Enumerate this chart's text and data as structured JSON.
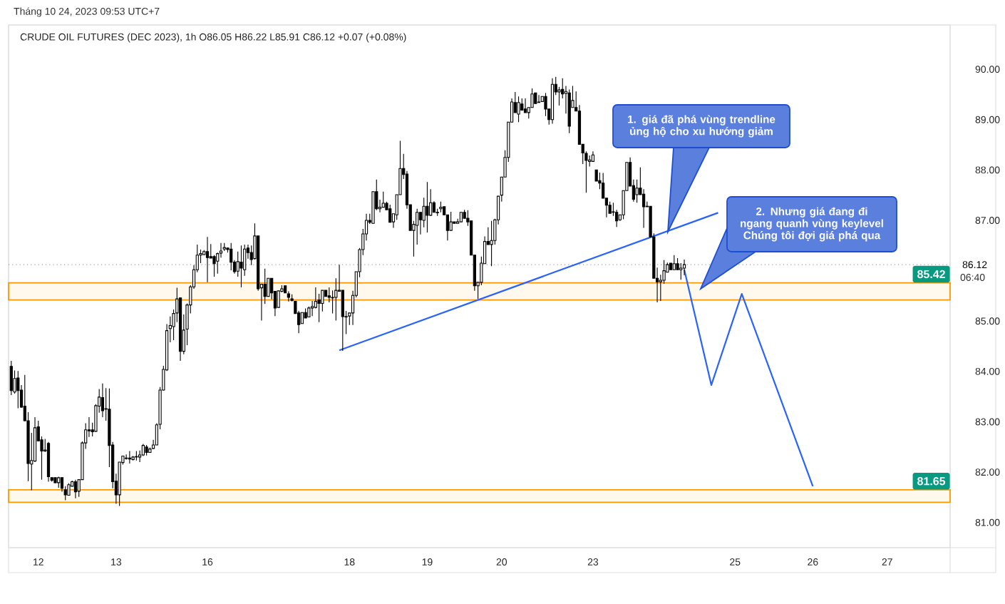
{
  "chart_data": {
    "type": "candlestick",
    "title": "CRUDE OIL FUTURES (DEC 2023), 1h  O86.05  H86.22  L85.91  C86.12  +0.07 (+0.08%)",
    "subtitle": "Tháng 10 24, 2023 09:53 UTC+7",
    "annotations": [
      "06:40",
      "1. giá đã phá vùng trendline ủng hộ cho xu hướng giảm",
      "2. Nhưng giá đang đi ngang quanh vùng keylevel Chúng tôi đợi giá phá qua"
    ],
    "categories": [
      null,
      null,
      null,
      null,
      null,
      null,
      null,
      null,
      "12",
      null,
      null,
      null,
      null,
      null,
      null,
      null,
      null,
      null,
      null,
      null,
      null,
      null,
      null,
      null,
      null,
      null,
      null,
      null,
      null,
      null,
      null,
      "13",
      null,
      null,
      null,
      null,
      null,
      null,
      null,
      null,
      null,
      null,
      null,
      null,
      null,
      null,
      null,
      null,
      null,
      null,
      null,
      null,
      null,
      null,
      null,
      null,
      null,
      null,
      "16",
      null,
      null,
      null,
      null,
      null,
      null,
      null,
      null,
      null,
      null,
      null,
      null,
      null,
      null,
      null,
      null,
      null,
      null,
      null,
      null,
      null,
      null,
      null,
      null,
      null,
      null,
      null,
      null,
      null,
      null,
      null,
      null,
      null,
      null,
      null,
      null,
      null,
      null,
      null,
      null,
      null,
      "18",
      null,
      null,
      null,
      null,
      null,
      null,
      null,
      null,
      null,
      null,
      null,
      null,
      null,
      null,
      null,
      null,
      null,
      null,
      null,
      null,
      null,
      null,
      "19",
      null,
      null,
      null,
      null,
      null,
      null,
      null,
      null,
      null,
      null,
      null,
      null,
      null,
      null,
      null,
      null,
      null,
      null,
      null,
      null,
      null,
      "20",
      null,
      null,
      null,
      null,
      null,
      null,
      null,
      null,
      null,
      null,
      null,
      null,
      null,
      null,
      null,
      null,
      null,
      null,
      null,
      null,
      null,
      null,
      null,
      null,
      null,
      null,
      "23",
      null,
      null,
      null,
      null,
      null,
      null,
      null,
      null,
      null,
      null,
      null,
      null,
      null,
      null,
      null,
      null,
      null,
      null,
      null,
      null,
      null,
      null,
      null,
      null,
      null,
      null,
      null,
      null,
      null,
      null,
      null,
      null,
      null,
      null,
      null,
      null,
      null,
      null,
      null,
      null,
      null,
      "25",
      null,
      null,
      null,
      null,
      null,
      null,
      null,
      null,
      null,
      null,
      null,
      null,
      null,
      null,
      null,
      null,
      null,
      null,
      null,
      null,
      null,
      null,
      "26",
      null,
      null,
      null,
      null,
      null,
      null,
      null,
      null,
      null,
      null,
      null,
      null,
      null,
      null,
      null,
      null,
      null,
      null,
      null,
      null,
      null,
      "27",
      null,
      null,
      null,
      null,
      null,
      null,
      null,
      null,
      null,
      null,
      null,
      null,
      null,
      null,
      null,
      null,
      null,
      null
    ],
    "ohlc": [
      [
        84.1,
        84.21,
        83.53,
        83.62
      ],
      [
        83.59,
        84.02,
        83.56,
        83.86
      ],
      [
        83.87,
        84.01,
        83.27,
        83.62
      ],
      [
        83.63,
        83.73,
        83.28,
        83.29
      ],
      [
        83.31,
        83.93,
        83.01,
        83.02
      ],
      [
        83.02,
        83.19,
        81.82,
        82.17
      ],
      [
        82.16,
        82.78,
        81.64,
        82.23
      ],
      [
        82.22,
        83.09,
        82.2,
        82.88
      ],
      [
        82.9,
        83.02,
        82.61,
        82.62
      ],
      [
        82.64,
        82.71,
        81.85,
        82.42
      ],
      [
        82.42,
        82.66,
        82.4,
        82.44
      ],
      [
        82.57,
        82.6,
        81.81,
        81.91
      ],
      [
        81.89,
        81.89,
        81.81,
        81.84
      ],
      [
        81.89,
        81.89,
        81.78,
        81.79
      ],
      [
        81.79,
        81.91,
        81.69,
        81.89
      ],
      [
        81.89,
        81.89,
        81.61,
        81.68
      ],
      [
        81.65,
        81.72,
        81.44,
        81.55
      ],
      [
        81.54,
        81.78,
        81.54,
        81.75
      ],
      [
        81.72,
        81.83,
        81.72,
        81.81
      ],
      [
        81.81,
        81.85,
        81.48,
        81.61
      ],
      [
        81.62,
        81.85,
        81.51,
        81.85
      ],
      [
        81.85,
        82.61,
        81.85,
        82.58
      ],
      [
        82.58,
        82.97,
        82.46,
        82.84
      ],
      [
        82.84,
        83.09,
        82.7,
        82.82
      ],
      [
        82.84,
        82.98,
        82.71,
        82.8
      ],
      [
        82.81,
        83.35,
        82.8,
        83.32
      ],
      [
        83.31,
        83.65,
        83.18,
        83.49
      ],
      [
        83.48,
        83.76,
        83.09,
        83.22
      ],
      [
        83.26,
        83.67,
        83.02,
        83.25
      ],
      [
        83.25,
        83.66,
        82.1,
        82.53
      ],
      [
        82.54,
        82.6,
        81.68,
        81.81
      ],
      [
        81.82,
        81.97,
        81.37,
        81.55
      ],
      [
        81.55,
        82.2,
        81.33,
        82.2
      ],
      [
        82.19,
        82.32,
        82.15,
        82.32
      ],
      [
        82.27,
        82.35,
        82.25,
        82.28
      ],
      [
        82.28,
        82.42,
        82.17,
        82.26
      ],
      [
        82.25,
        82.32,
        82.23,
        82.3
      ],
      [
        82.3,
        82.42,
        82.23,
        82.31
      ],
      [
        82.3,
        82.43,
        82.2,
        82.34
      ],
      [
        82.34,
        82.56,
        82.32,
        82.53
      ],
      [
        82.5,
        82.54,
        82.33,
        82.39
      ],
      [
        82.39,
        82.49,
        82.39,
        82.46
      ],
      [
        82.47,
        82.64,
        82.46,
        82.54
      ],
      [
        82.54,
        82.97,
        82.54,
        82.94
      ],
      [
        82.95,
        83.69,
        82.85,
        83.63
      ],
      [
        83.63,
        84.11,
        83.62,
        84.04
      ],
      [
        84.03,
        84.94,
        84.01,
        84.81
      ],
      [
        84.85,
        85.09,
        84.58,
        84.91
      ],
      [
        84.89,
        85.23,
        84.62,
        85.15
      ],
      [
        85.16,
        85.66,
        84.98,
        85.44
      ],
      [
        85.46,
        85.47,
        84.21,
        84.4
      ],
      [
        84.4,
        85.13,
        84.34,
        84.82
      ],
      [
        84.84,
        85.35,
        84.52,
        85.32
      ],
      [
        85.32,
        85.71,
        85.15,
        85.68
      ],
      [
        85.68,
        86.11,
        85.64,
        86.02
      ],
      [
        86.02,
        86.52,
        85.97,
        86.31
      ],
      [
        86.31,
        86.42,
        86.15,
        86.34
      ],
      [
        86.32,
        86.41,
        86.31,
        86.38
      ],
      [
        86.38,
        86.67,
        85.77,
        86.26
      ],
      [
        86.28,
        86.53,
        86.25,
        86.25
      ],
      [
        86.28,
        86.31,
        85.88,
        86.14
      ],
      [
        86.19,
        86.36,
        85.94,
        86.34
      ],
      [
        86.35,
        86.55,
        86.26,
        86.39
      ],
      [
        86.43,
        86.55,
        86.39,
        86.46
      ],
      [
        86.45,
        86.46,
        86.36,
        86.42
      ],
      [
        86.43,
        86.55,
        86.01,
        86.17
      ],
      [
        86.17,
        86.21,
        85.94,
        85.98
      ],
      [
        85.99,
        86.38,
        85.88,
        86.18
      ],
      [
        86.17,
        86.5,
        85.67,
        86.05
      ],
      [
        86.02,
        86.52,
        85.9,
        86.43
      ],
      [
        86.45,
        86.52,
        86.24,
        86.36
      ],
      [
        86.36,
        86.5,
        86.11,
        86.22
      ],
      [
        86.24,
        86.94,
        86.22,
        86.69
      ],
      [
        86.69,
        86.69,
        85.6,
        85.64
      ],
      [
        85.66,
        85.73,
        85.01,
        85.73
      ],
      [
        85.73,
        86.04,
        85.34,
        85.49
      ],
      [
        85.49,
        85.85,
        85.49,
        85.85
      ],
      [
        85.85,
        85.85,
        85.43,
        85.56
      ],
      [
        85.59,
        85.59,
        85.1,
        85.26
      ],
      [
        85.27,
        85.6,
        85.27,
        85.6
      ],
      [
        85.59,
        85.71,
        85.57,
        85.64
      ],
      [
        85.7,
        85.7,
        85.56,
        85.56
      ],
      [
        85.54,
        85.59,
        85.39,
        85.47
      ],
      [
        85.44,
        85.53,
        85.39,
        85.41
      ],
      [
        85.39,
        85.39,
        85.15,
        85.15
      ],
      [
        85.16,
        85.2,
        84.76,
        84.93
      ],
      [
        84.95,
        85.17,
        84.95,
        85.17
      ],
      [
        85.17,
        85.25,
        85.06,
        85.06
      ],
      [
        85.08,
        85.29,
        85.08,
        85.26
      ],
      [
        85.26,
        85.4,
        85.1,
        85.29
      ],
      [
        85.27,
        85.67,
        85.25,
        85.39
      ],
      [
        85.42,
        85.54,
        84.98,
        85.35
      ],
      [
        85.35,
        85.61,
        85.19,
        85.61
      ],
      [
        85.61,
        85.61,
        85.49,
        85.49
      ],
      [
        85.5,
        85.67,
        85.37,
        85.47
      ],
      [
        85.47,
        85.61,
        85.15,
        85.46
      ],
      [
        85.47,
        85.85,
        85.01,
        85.61
      ],
      [
        85.59,
        86.12,
        85.59,
        85.61
      ],
      [
        85.61,
        85.61,
        84.41,
        85.09
      ],
      [
        85.09,
        85.2,
        84.74,
        85.08
      ],
      [
        85.1,
        85.16,
        84.92,
        85.16
      ],
      [
        85.16,
        85.6,
        84.92,
        85.51
      ],
      [
        85.51,
        85.98,
        85.47,
        85.98
      ],
      [
        85.98,
        86.45,
        85.87,
        86.42
      ],
      [
        86.42,
        86.83,
        86.31,
        86.73
      ],
      [
        86.73,
        87.13,
        86.6,
        87.0
      ],
      [
        87.0,
        87.13,
        86.93,
        86.96
      ],
      [
        86.94,
        87.57,
        86.94,
        87.57
      ],
      [
        87.57,
        87.81,
        87.2,
        87.23
      ],
      [
        87.23,
        87.41,
        87.16,
        87.26
      ],
      [
        87.26,
        87.57,
        87.26,
        87.34
      ],
      [
        87.34,
        87.37,
        87.21,
        87.21
      ],
      [
        87.23,
        87.31,
        86.96,
        86.96
      ],
      [
        86.97,
        87.13,
        86.85,
        87.13
      ],
      [
        87.11,
        87.51,
        87.01,
        87.51
      ],
      [
        87.51,
        88.58,
        87.51,
        88.03
      ],
      [
        88.03,
        88.32,
        87.82,
        87.91
      ],
      [
        87.92,
        87.98,
        87.23,
        87.31
      ],
      [
        87.31,
        87.31,
        86.8,
        86.8
      ],
      [
        86.8,
        86.99,
        86.28,
        86.92
      ],
      [
        86.9,
        87.23,
        86.52,
        87.16
      ],
      [
        87.16,
        87.16,
        86.72,
        87.01
      ],
      [
        87.0,
        87.45,
        86.86,
        87.28
      ],
      [
        87.28,
        87.76,
        86.76,
        87.1
      ],
      [
        87.1,
        87.62,
        87.09,
        87.35
      ],
      [
        87.35,
        87.38,
        87.16,
        87.16
      ],
      [
        87.16,
        87.23,
        87.09,
        87.15
      ],
      [
        87.23,
        87.37,
        87.16,
        87.26
      ],
      [
        87.27,
        87.27,
        87.11,
        87.11
      ],
      [
        87.11,
        87.11,
        86.6,
        86.8
      ],
      [
        86.8,
        87.17,
        86.8,
        86.97
      ],
      [
        86.97,
        86.97,
        86.94,
        86.94
      ],
      [
        86.94,
        87.03,
        86.94,
        86.97
      ],
      [
        86.97,
        87.16,
        86.97,
        87.16
      ],
      [
        87.16,
        87.21,
        87.04,
        87.04
      ],
      [
        87.04,
        87.2,
        86.89,
        86.97
      ],
      [
        86.99,
        86.99,
        86.31,
        86.31
      ],
      [
        86.31,
        86.31,
        85.6,
        85.7
      ],
      [
        85.7,
        85.77,
        85.44,
        85.77
      ],
      [
        85.77,
        86.28,
        85.71,
        86.15
      ],
      [
        86.14,
        86.68,
        86.14,
        86.58
      ],
      [
        86.58,
        86.86,
        86.52,
        86.52
      ],
      [
        86.52,
        86.99,
        86.09,
        86.6
      ],
      [
        86.6,
        87.03,
        86.52,
        87.01
      ],
      [
        87.01,
        87.48,
        86.92,
        87.48
      ],
      [
        87.5,
        87.86,
        87.37,
        87.86
      ],
      [
        87.86,
        88.39,
        87.86,
        88.25
      ],
      [
        88.25,
        88.95,
        88.16,
        88.95
      ],
      [
        88.95,
        89.42,
        88.95,
        89.35
      ],
      [
        89.34,
        89.55,
        89.14,
        89.14
      ],
      [
        89.11,
        89.46,
        88.95,
        89.34
      ],
      [
        89.31,
        89.42,
        89.19,
        89.19
      ],
      [
        89.21,
        89.42,
        89.14,
        89.14
      ],
      [
        89.14,
        89.24,
        89.02,
        89.24
      ],
      [
        89.24,
        89.62,
        89.24,
        89.51
      ],
      [
        89.53,
        89.53,
        89.32,
        89.32
      ],
      [
        89.35,
        89.49,
        89.34,
        89.34
      ],
      [
        89.36,
        89.46,
        89.36,
        89.46
      ],
      [
        89.46,
        89.53,
        89.07,
        89.21
      ],
      [
        89.21,
        89.21,
        88.9,
        89.0
      ],
      [
        89.0,
        89.82,
        88.92,
        89.7
      ],
      [
        89.7,
        89.85,
        89.49,
        89.55
      ],
      [
        89.55,
        89.65,
        89.28,
        89.59
      ],
      [
        89.6,
        89.82,
        89.42,
        89.51
      ],
      [
        89.52,
        89.67,
        89.12,
        89.56
      ],
      [
        89.53,
        89.6,
        88.73,
        88.87
      ],
      [
        89.24,
        89.67,
        89.24,
        89.38
      ],
      [
        89.24,
        89.56,
        89.17,
        89.17
      ],
      [
        89.17,
        89.29,
        88.51,
        88.51
      ],
      [
        88.51,
        88.51,
        88.12,
        88.34
      ],
      [
        88.33,
        88.37,
        87.55,
        88.19
      ],
      [
        88.17,
        88.29,
        88.07,
        88.2
      ],
      [
        88.17,
        88.37,
        88.17,
        88.3
      ],
      [
        88.0,
        88.0,
        87.78,
        87.78
      ],
      [
        87.79,
        87.95,
        87.62,
        87.74
      ],
      [
        87.74,
        87.94,
        87.44,
        87.44
      ],
      [
        87.44,
        87.44,
        87.06,
        87.3
      ],
      [
        87.3,
        87.37,
        87.14,
        87.14
      ],
      [
        87.17,
        87.35,
        87.09,
        87.16
      ],
      [
        87.16,
        87.21,
        86.87,
        86.99
      ],
      [
        87.01,
        87.11,
        86.99,
        87.11
      ],
      [
        87.11,
        87.59,
        87.02,
        87.59
      ],
      [
        87.59,
        88.15,
        87.59,
        88.15
      ],
      [
        88.15,
        88.25,
        87.68,
        87.68
      ],
      [
        87.69,
        87.81,
        87.37,
        87.42
      ],
      [
        87.51,
        87.81,
        87.35,
        87.64
      ],
      [
        87.64,
        88.05,
        87.51,
        87.51
      ],
      [
        87.52,
        87.62,
        86.85,
        87.27
      ],
      [
        87.28,
        87.37,
        87.27,
        87.27
      ],
      [
        87.28,
        87.28,
        86.67,
        86.67
      ],
      [
        86.67,
        86.74,
        85.85,
        85.85
      ],
      [
        85.85,
        86.06,
        85.37,
        85.78
      ],
      [
        85.78,
        85.92,
        85.4,
        85.81
      ],
      [
        85.81,
        86.21,
        85.74,
        86.0
      ],
      [
        85.97,
        86.16,
        85.97,
        86.12
      ],
      [
        86.15,
        86.15,
        86.02,
        86.02
      ],
      [
        86.02,
        86.31,
        86.02,
        86.14
      ],
      [
        86.14,
        86.25,
        86.02,
        86.02
      ],
      [
        86.02,
        86.15,
        85.82,
        86.05
      ],
      [
        86.05,
        86.22,
        85.91,
        86.12
      ],
      null,
      null,
      null,
      null,
      null,
      null,
      null,
      null,
      null,
      null,
      null,
      null,
      null,
      null,
      null,
      null,
      null,
      null,
      null,
      null,
      null,
      null,
      null,
      null,
      null,
      null,
      null,
      null,
      null,
      null,
      null,
      null,
      null,
      null,
      null,
      null,
      null,
      null,
      null,
      null,
      null,
      null,
      null,
      null,
      null,
      null,
      null,
      null,
      null,
      null,
      null,
      null,
      null,
      null,
      null,
      null,
      null,
      null,
      null,
      null,
      null,
      null,
      null,
      null,
      null,
      null,
      null,
      null,
      null,
      null,
      null,
      null,
      null,
      null,
      null,
      null,
      null,
      null
    ],
    "series": [
      {
        "type": "line",
        "color": "#2962ff",
        "values": [
          null,
          null,
          null,
          null,
          null,
          null,
          null,
          null,
          null,
          null,
          null,
          null,
          null,
          null,
          null,
          null,
          null,
          null,
          null,
          null,
          null,
          null,
          null,
          null,
          null,
          null,
          null,
          null,
          null,
          null,
          null,
          null,
          null,
          null,
          null,
          null,
          null,
          null,
          null,
          null,
          null,
          null,
          null,
          null,
          null,
          null,
          null,
          null,
          null,
          null,
          null,
          null,
          null,
          null,
          null,
          null,
          null,
          null,
          null,
          null,
          null,
          null,
          null,
          null,
          null,
          null,
          null,
          null,
          null,
          null,
          null,
          null,
          null,
          null,
          null,
          null,
          null,
          null,
          null,
          null,
          null,
          null,
          null,
          null,
          null,
          null,
          null,
          null,
          null,
          null,
          null,
          null,
          null,
          null,
          null,
          null,
          null,
          84.42,
          null,
          null,
          null,
          null,
          null,
          null,
          null,
          null,
          null,
          null,
          null,
          null,
          null,
          null,
          null,
          null,
          null,
          null,
          null,
          null,
          null,
          null,
          null,
          null,
          null,
          null,
          null,
          null,
          null,
          null,
          null,
          null,
          null,
          null,
          null,
          null,
          null,
          null,
          null,
          null,
          null,
          null,
          null,
          null,
          null,
          null,
          null,
          null,
          null,
          null,
          null,
          null,
          null,
          null,
          null,
          null,
          null,
          null,
          null,
          null,
          null,
          null,
          null,
          null,
          null,
          null,
          null,
          null,
          null,
          null,
          null,
          null,
          null,
          null,
          null,
          null,
          null,
          null,
          null,
          null,
          null,
          null,
          null,
          null,
          null,
          null,
          null,
          null,
          null,
          null,
          null,
          null,
          null,
          null,
          null,
          null,
          null,
          null,
          null,
          null,
          null,
          null,
          null,
          null,
          null,
          null,
          null,
          null,
          null,
          null,
          null,
          87.15,
          null,
          null,
          null,
          null,
          null,
          null,
          null,
          null,
          null,
          null,
          null,
          null,
          null,
          null,
          null,
          null,
          null,
          null,
          null,
          null,
          null,
          null,
          null,
          null,
          null,
          null,
          null,
          null,
          null,
          null,
          null,
          null,
          null,
          null,
          null,
          null,
          null,
          null,
          null,
          null,
          null,
          null,
          null,
          null,
          null,
          null,
          null,
          null,
          null,
          null,
          null,
          null,
          null,
          null,
          null,
          null,
          null,
          null,
          null,
          null,
          null,
          null,
          null,
          null,
          null,
          null,
          null,
          null
        ]
      },
      {
        "type": "line",
        "color": "#2962ff",
        "values": [
          null,
          null,
          null,
          null,
          null,
          null,
          null,
          null,
          null,
          null,
          null,
          null,
          null,
          null,
          null,
          null,
          null,
          null,
          null,
          null,
          null,
          null,
          null,
          null,
          null,
          null,
          null,
          null,
          null,
          null,
          null,
          null,
          null,
          null,
          null,
          null,
          null,
          null,
          null,
          null,
          null,
          null,
          null,
          null,
          null,
          null,
          null,
          null,
          null,
          null,
          null,
          null,
          null,
          null,
          null,
          null,
          null,
          null,
          null,
          null,
          null,
          null,
          null,
          null,
          null,
          null,
          null,
          null,
          null,
          null,
          null,
          null,
          null,
          null,
          null,
          null,
          null,
          null,
          null,
          null,
          null,
          null,
          null,
          null,
          null,
          null,
          null,
          null,
          null,
          null,
          null,
          null,
          null,
          null,
          null,
          null,
          null,
          null,
          null,
          null,
          null,
          null,
          null,
          null,
          null,
          null,
          null,
          null,
          null,
          null,
          null,
          null,
          null,
          null,
          null,
          null,
          null,
          null,
          null,
          null,
          null,
          null,
          null,
          null,
          null,
          null,
          null,
          null,
          null,
          null,
          null,
          null,
          null,
          null,
          null,
          null,
          null,
          null,
          null,
          null,
          null,
          null,
          null,
          null,
          null,
          null,
          null,
          null,
          null,
          null,
          null,
          null,
          null,
          null,
          null,
          null,
          null,
          null,
          null,
          null,
          null,
          null,
          null,
          null,
          null,
          null,
          null,
          null,
          null,
          null,
          null,
          null,
          null,
          null,
          null,
          null,
          null,
          null,
          null,
          null,
          null,
          null,
          null,
          null,
          null,
          null,
          null,
          null,
          null,
          null,
          null,
          null,
          null,
          null,
          null,
          null,
          null,
          null,
          null,
          86.02,
          null,
          null,
          null,
          null,
          null,
          null,
          null,
          83.73,
          null,
          null,
          null,
          null,
          null,
          null,
          null,
          null,
          85.54,
          null,
          null,
          null,
          null,
          null,
          null,
          null,
          null,
          null,
          null,
          null,
          null,
          null,
          null,
          null,
          null,
          null,
          null,
          null,
          null,
          81.72,
          null,
          null,
          null,
          null,
          null,
          null,
          null,
          null,
          null,
          null,
          null,
          null,
          null,
          null,
          null,
          null,
          null,
          null,
          null,
          null,
          null,
          null,
          null,
          null,
          null,
          null,
          null,
          null,
          null,
          null,
          null,
          null,
          null,
          null,
          null,
          null,
          null,
          null,
          null,
          null
        ]
      }
    ],
    "ylim": [
      80.5,
      90.88
    ],
    "yticks": [
      {
        "value": 81,
        "label": "81.00"
      },
      {
        "value": 82,
        "label": "82.00"
      },
      {
        "value": 83,
        "label": "83.00"
      },
      {
        "value": 84,
        "label": "84.00"
      },
      {
        "value": 85,
        "label": "85.00"
      },
      {
        "value": 87,
        "label": "87.00"
      },
      {
        "value": 88,
        "label": "88.00"
      },
      {
        "value": 89,
        "label": "89.00"
      },
      {
        "value": 90,
        "label": "90.00"
      }
    ],
    "ref_lines": [
      {
        "axis": "y",
        "value": 86.12,
        "label": "86.12",
        "color": "#9e9e9e",
        "line_style": "dotted"
      }
    ],
    "bands": [
      {
        "axis": "y",
        "from": 85.42,
        "to": 85.76,
        "label": "85.42",
        "color": "#ff9800"
      },
      {
        "axis": "y",
        "from": 81.4,
        "to": 81.65,
        "label": "81.65",
        "color": "#ff9800"
      }
    ]
  }
}
